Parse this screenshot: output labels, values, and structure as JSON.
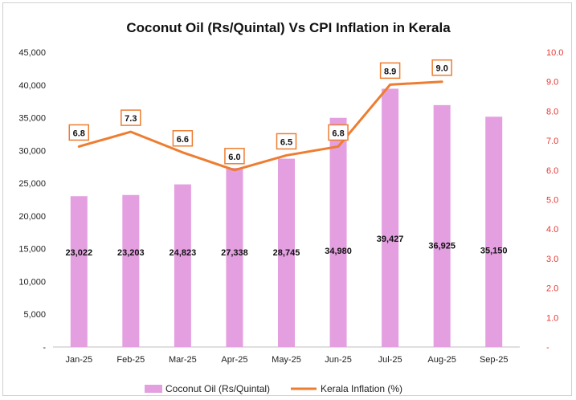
{
  "chart_data": {
    "type": "bar",
    "title": "Coconut Oil (Rs/Quintal) Vs CPI Inflation in Kerala",
    "categories": [
      "Jan-25",
      "Feb-25",
      "Mar-25",
      "Apr-25",
      "May-25",
      "Jun-25",
      "Jul-25",
      "Aug-25",
      "Sep-25"
    ],
    "series": [
      {
        "name": "Coconut Oil (Rs/Quintal)",
        "type": "bar",
        "axis": "left",
        "color": "#e39fe0",
        "values": [
          23022,
          23203,
          24823,
          27338,
          28745,
          34980,
          39427,
          36925,
          35150
        ],
        "labels": [
          "23,022",
          "23,203",
          "24,823",
          "27,338",
          "28,745",
          "34,980",
          "39,427",
          "36,925",
          "35,150"
        ]
      },
      {
        "name": "Kerala Inflation (%)",
        "type": "line",
        "axis": "right",
        "color": "#ed7d31",
        "values": [
          6.8,
          7.3,
          6.6,
          6.0,
          6.5,
          6.8,
          8.9,
          9.0,
          null
        ],
        "labels": [
          "6.8",
          "7.3",
          "6.6",
          "6.0",
          "6.5",
          "6.8",
          "8.9",
          "9.0",
          ""
        ]
      }
    ],
    "y_left": {
      "ylim": [
        0,
        45000
      ],
      "ticks": [
        0,
        5000,
        10000,
        15000,
        20000,
        25000,
        30000,
        35000,
        40000,
        45000
      ],
      "tick_labels": [
        "-",
        "5,000",
        "10,000",
        "15,000",
        "20,000",
        "25,000",
        "30,000",
        "35,000",
        "40,000",
        "45,000"
      ]
    },
    "y_right": {
      "ylim": [
        0,
        10
      ],
      "ticks": [
        0,
        1,
        2,
        3,
        4,
        5,
        6,
        7,
        8,
        9,
        10
      ],
      "tick_labels": [
        "-",
        "1.0",
        "2.0",
        "3.0",
        "4.0",
        "5.0",
        "6.0",
        "7.0",
        "8.0",
        "9.0",
        "10.0"
      ],
      "color": "#e53935"
    },
    "legend": {
      "position": "bottom",
      "entries": [
        "Coconut Oil (Rs/Quintal)",
        "Kerala Inflation (%)"
      ]
    },
    "grid": false
  }
}
